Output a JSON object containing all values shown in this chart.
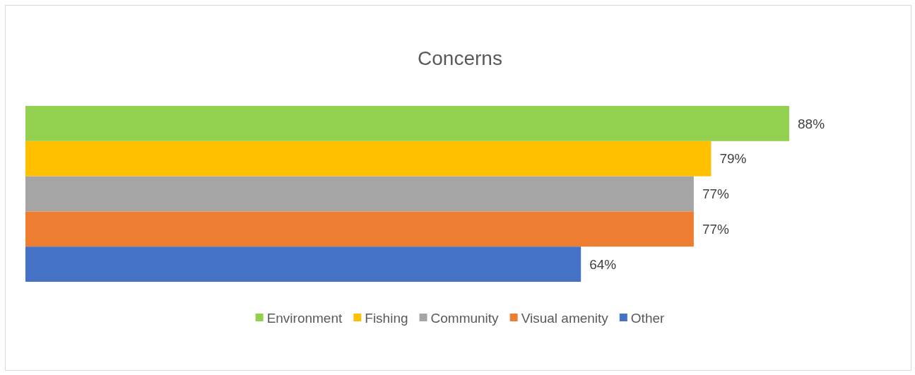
{
  "chart_data": {
    "type": "bar",
    "title": "Concerns",
    "orientation": "horizontal",
    "categories": [
      null
    ],
    "legend": "bottom",
    "series": [
      {
        "name": "Environment",
        "color": "#92d050",
        "values": [
          88
        ],
        "value_labels": [
          "88%"
        ]
      },
      {
        "name": "Fishing",
        "color": "#ffc000",
        "values": [
          79
        ],
        "value_labels": [
          "79%"
        ]
      },
      {
        "name": "Community",
        "color": "#a5a5a5",
        "values": [
          77
        ],
        "value_labels": [
          "77%"
        ]
      },
      {
        "name": "Visual amenity",
        "color": "#ed7d31",
        "values": [
          77
        ],
        "value_labels": [
          "77%"
        ]
      },
      {
        "name": "Other",
        "color": "#4472c4",
        "values": [
          64
        ],
        "value_labels": [
          "64%"
        ]
      }
    ]
  }
}
